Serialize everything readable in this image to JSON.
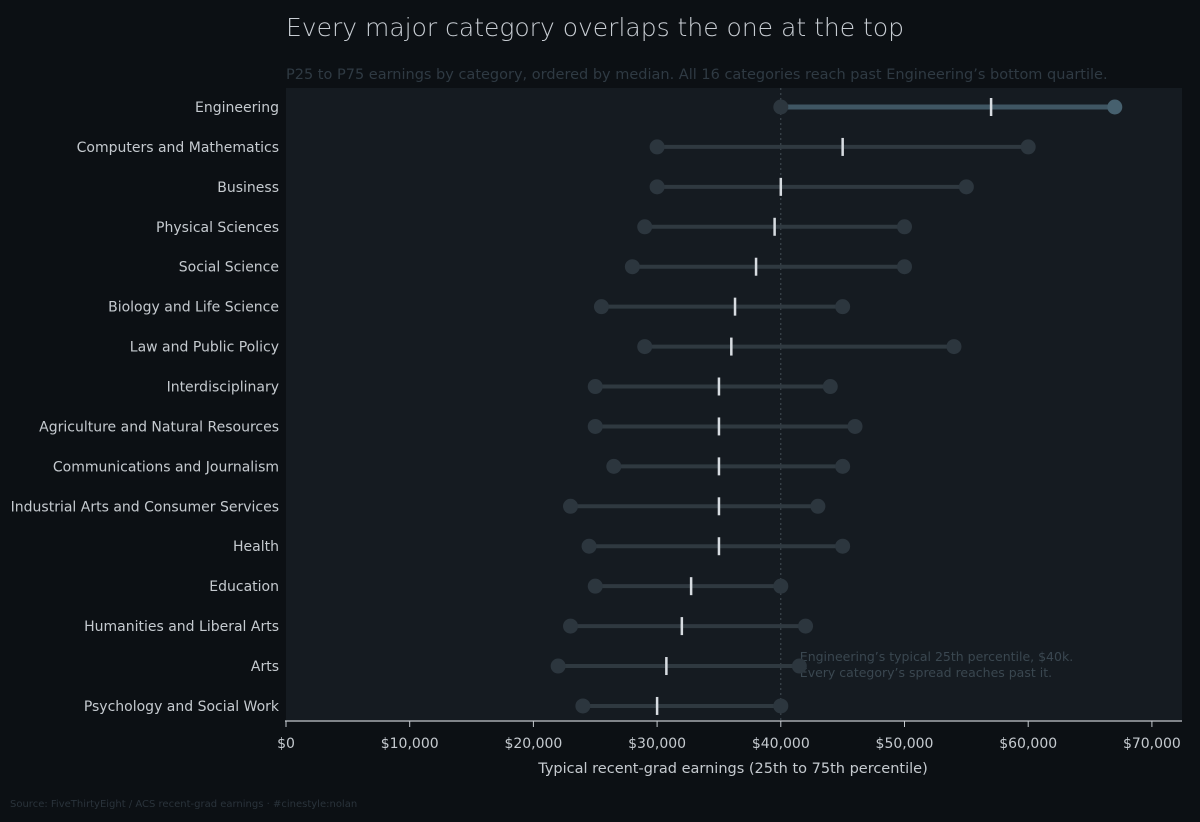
{
  "chart_data": {
    "type": "dumbbell",
    "title": "Every major category overlaps the one at the top",
    "subtitle": "P25 to P75 earnings by category, ordered by median. All 16 categories reach past Engineering’s bottom quartile.",
    "xlabel": "Typical recent-grad earnings (25th to 75th percentile)",
    "xlim": [
      0,
      72500
    ],
    "x_ticks": [
      0,
      10000,
      20000,
      30000,
      40000,
      50000,
      60000,
      70000
    ],
    "x_tick_labels": [
      "$0",
      "$10,000",
      "$20,000",
      "$30,000",
      "$40,000",
      "$50,000",
      "$60,000",
      "$70,000"
    ],
    "reference_line": {
      "value": 40000,
      "style": "dotted",
      "annotation": [
        "Engineering’s typical 25th percentile, $40k.",
        "Every category’s spread reaches past it."
      ]
    },
    "highlight_category": "Engineering",
    "categories": [
      {
        "name": "Engineering",
        "p25": 40000,
        "median": 57000,
        "p75": 67000
      },
      {
        "name": "Computers and Mathematics",
        "p25": 30000,
        "median": 45000,
        "p75": 60000
      },
      {
        "name": "Business",
        "p25": 30000,
        "median": 40000,
        "p75": 55000
      },
      {
        "name": "Physical Sciences",
        "p25": 29000,
        "median": 39500,
        "p75": 50000
      },
      {
        "name": "Social Science",
        "p25": 28000,
        "median": 38000,
        "p75": 50000
      },
      {
        "name": "Biology and Life Science",
        "p25": 25500,
        "median": 36300,
        "p75": 45000
      },
      {
        "name": "Law and Public Policy",
        "p25": 29000,
        "median": 36000,
        "p75": 54000
      },
      {
        "name": "Interdisciplinary",
        "p25": 25000,
        "median": 35000,
        "p75": 44000
      },
      {
        "name": "Agriculture and Natural Resources",
        "p25": 25000,
        "median": 35000,
        "p75": 46000
      },
      {
        "name": "Communications and Journalism",
        "p25": 26500,
        "median": 35000,
        "p75": 45000
      },
      {
        "name": "Industrial Arts and Consumer Services",
        "p25": 23000,
        "median": 35000,
        "p75": 43000
      },
      {
        "name": "Health",
        "p25": 24500,
        "median": 35000,
        "p75": 45000
      },
      {
        "name": "Education",
        "p25": 25000,
        "median": 32750,
        "p75": 40000
      },
      {
        "name": "Humanities and Liberal Arts",
        "p25": 23000,
        "median": 32000,
        "p75": 42000
      },
      {
        "name": "Arts",
        "p25": 22000,
        "median": 30750,
        "p75": 41500
      },
      {
        "name": "Psychology and Social Work",
        "p25": 24000,
        "median": 30000,
        "p75": 40000
      }
    ],
    "colors": {
      "page_background": "#0c1014",
      "plot_background": "#151b21",
      "range_line": "#2f3940",
      "endpoint": "#2c363e",
      "highlight_range": "#3f5663",
      "highlight_endpoint": "#46606e",
      "median_tick": "#d7dce1",
      "reference_line": "#454f58",
      "axis": "#c5cacf"
    }
  },
  "footer": {
    "source": "Source: FiveThirtyEight / ACS recent-grad earnings · #cinestyle:nolan"
  }
}
